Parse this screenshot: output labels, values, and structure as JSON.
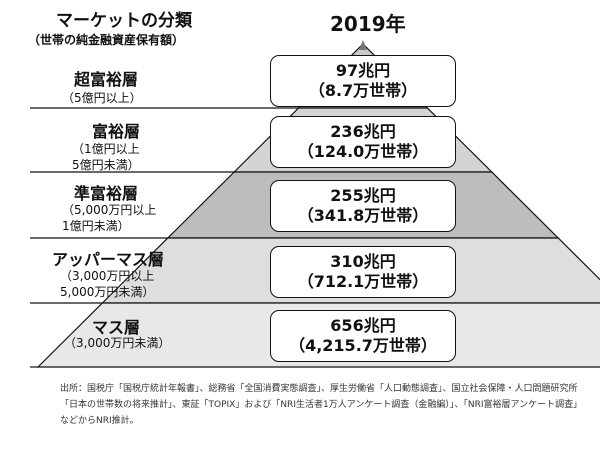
{
  "header": {
    "title": "マーケットの分類",
    "subtitle": "（世帯の純金融資産保有額）",
    "year": "2019年"
  },
  "segments": [
    {
      "name": "超富裕層",
      "range": [
        "（5億円以上）"
      ],
      "assets": "97兆円",
      "households": "（8.7万世帯）"
    },
    {
      "name": "富裕層",
      "range": [
        "（1億円以上",
        "5億円未満）"
      ],
      "assets": "236兆円",
      "households": "（124.0万世帯）"
    },
    {
      "name": "準富裕層",
      "range": [
        "（5,000万円以上",
        "1億円未満）"
      ],
      "assets": "255兆円",
      "households": "（341.8万世帯）"
    },
    {
      "name": "アッパーマス層",
      "range": [
        "（3,000万円以上",
        "5,000万円未満）"
      ],
      "assets": "310兆円",
      "households": "（712.1万世帯）"
    },
    {
      "name": "マス層",
      "range": [
        "（3,000万円未満）"
      ],
      "assets": "656兆円",
      "households": "（4,215.7万世帯）"
    }
  ],
  "source": "出所：国税庁「国税庁統計年報書」、総務省「全国消費実態調査」、厚生労働省「人口動態調査」、国立社会保障・人口問題研究所「日本の世帯数の将来推計」、東証「TOPIX」および「NRI生活者1万人アンケート調査（金融編）」、「NRI富裕層アンケート調査」などからNRI推計。",
  "colors": {
    "tier_fills": [
      "#c9c9c9",
      "#d4d4d4",
      "#bdbdbd",
      "#dedede",
      "#e8e8e8"
    ],
    "apex": "#777777",
    "lines": "#111111"
  }
}
